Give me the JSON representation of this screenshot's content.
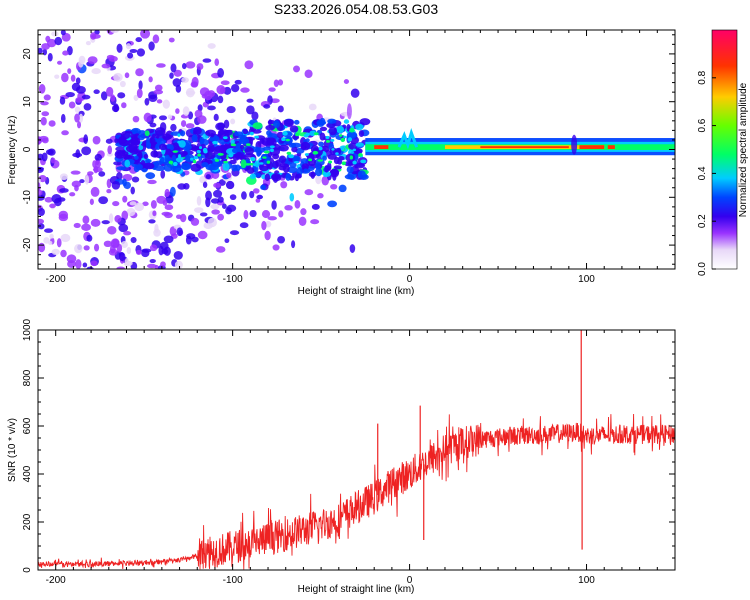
{
  "figure": {
    "title": "S233.2026.054.08.53.G03"
  },
  "chart_data": [
    {
      "type": "heatmap",
      "name": "spectrogram",
      "xlabel": "Height of straight line (km)",
      "ylabel": "Frequency (Hz)",
      "xlim": [
        -210,
        150
      ],
      "ylim": [
        -25,
        25
      ],
      "xticks": [
        -200,
        -100,
        0,
        100
      ],
      "xtick_labels": [
        "-200",
        "-100",
        "0",
        "100"
      ],
      "yticks": [
        -20,
        -10,
        0,
        10,
        20
      ],
      "ytick_labels": [
        "-20",
        "-10",
        "0",
        "10",
        "20"
      ],
      "colorbar": {
        "label": "Normalized spectral amplitude",
        "range": [
          0,
          1
        ],
        "ticks": [
          0,
          0.2,
          0.4,
          0.6,
          0.8
        ],
        "tick_labels": [
          "0.0",
          "0.2",
          "0.4",
          "0.6",
          "0.8"
        ],
        "colormap": [
          "#ffffff",
          "#e8d8f8",
          "#9933ff",
          "#5500ee",
          "#0000ff",
          "#00ccff",
          "#00ff66",
          "#aaff00",
          "#ffcc00",
          "#ff3300",
          "#ff0066"
        ]
      },
      "features": [
        {
          "region": "scattered noise",
          "x_range": [
            -210,
            -25
          ],
          "y_range": [
            -25,
            25
          ],
          "amplitude": 0.15
        },
        {
          "region": "dense band",
          "x_range": [
            -160,
            -25
          ],
          "y_range": [
            -6,
            5
          ],
          "amplitude": 0.25
        },
        {
          "region": "carrier line",
          "x_range": [
            -25,
            150
          ],
          "y_center": 0.5,
          "amplitude": 0.95
        }
      ]
    },
    {
      "type": "line",
      "name": "snr",
      "xlabel": "Height of straight line (km)",
      "ylabel": "SNR (10 * v/v)",
      "xlim": [
        -210,
        150
      ],
      "ylim": [
        0,
        1000
      ],
      "xticks": [
        -200,
        -100,
        0,
        100
      ],
      "xtick_labels": [
        "-200",
        "-100",
        "0",
        "100"
      ],
      "yticks": [
        0,
        200,
        400,
        600,
        800,
        1000
      ],
      "ytick_labels": [
        "0",
        "200",
        "400",
        "600",
        "800",
        "1000"
      ],
      "color": "#ee2222",
      "series": [
        {
          "name": "SNR envelope",
          "x": [
            -210,
            -180,
            -150,
            -130,
            -115,
            -100,
            -80,
            -60,
            -40,
            -30,
            -20,
            -10,
            0,
            10,
            20,
            30,
            40,
            60,
            80,
            95,
            100,
            120,
            150
          ],
          "y": [
            25,
            25,
            30,
            40,
            70,
            95,
            130,
            165,
            210,
            260,
            300,
            360,
            400,
            450,
            500,
            530,
            545,
            560,
            565,
            575,
            560,
            565,
            565
          ]
        }
      ],
      "spikes": [
        {
          "x": -18,
          "y": 610
        },
        {
          "x": 6,
          "y": 685
        },
        {
          "x": 8,
          "y": 125
        },
        {
          "x": 97,
          "y": 1000
        },
        {
          "x": 97.5,
          "y": 85
        }
      ],
      "noise_amplitude": {
        "below": 20,
        "ramp": 70,
        "plateau": 40
      }
    }
  ]
}
